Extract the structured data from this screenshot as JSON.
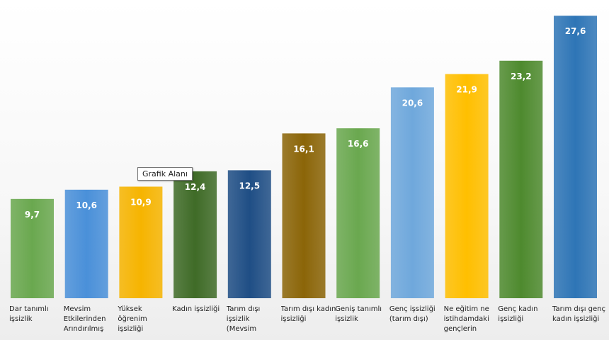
{
  "tooltip": "Grafik Alanı",
  "chart_data": {
    "type": "bar",
    "categories": [
      "Dar tanımlı işsizlik",
      "Mevsim Etkilerinden Arındırılmış",
      "Yüksek öğrenim işsizliği",
      "Kadın işsizliği",
      "Tarım dışı işsizlik (Mevsim",
      "Tarım dışı kadın işsizliği",
      "Geniş tanımlı işsizlik",
      "Genç işsizliği (tarım dışı)",
      "Ne eğitim ne istihdamdaki gençlerin",
      "Genç kadın işsizliği",
      "Tarım dışı genç kadın işsizliği"
    ],
    "values": [
      9.7,
      10.6,
      10.9,
      12.4,
      12.5,
      16.1,
      16.6,
      20.6,
      21.9,
      23.2,
      27.6
    ],
    "value_labels": [
      "9,7",
      "10,6",
      "10,9",
      "12,4",
      "12,5",
      "16,1",
      "16,6",
      "20,6",
      "21,9",
      "23,2",
      "27,6"
    ],
    "colors": [
      "#6aa84f",
      "#4a90d9",
      "#f6b400",
      "#3f6b27",
      "#1f4e85",
      "#8b6508",
      "#6aa84f",
      "#6fa8dc",
      "#ffbf00",
      "#4e8a2e",
      "#2e75b6"
    ],
    "ylim": [
      0,
      28.5
    ],
    "grid": false,
    "legend": "none"
  }
}
